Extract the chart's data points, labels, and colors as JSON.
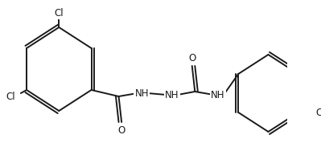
{
  "bg_color": "#ffffff",
  "line_color": "#1a1a1a",
  "line_width": 1.4,
  "font_size": 8.5,
  "figsize": [
    3.99,
    1.83
  ],
  "dpi": 100,
  "xlim": [
    0,
    399
  ],
  "ylim": [
    0,
    183
  ]
}
